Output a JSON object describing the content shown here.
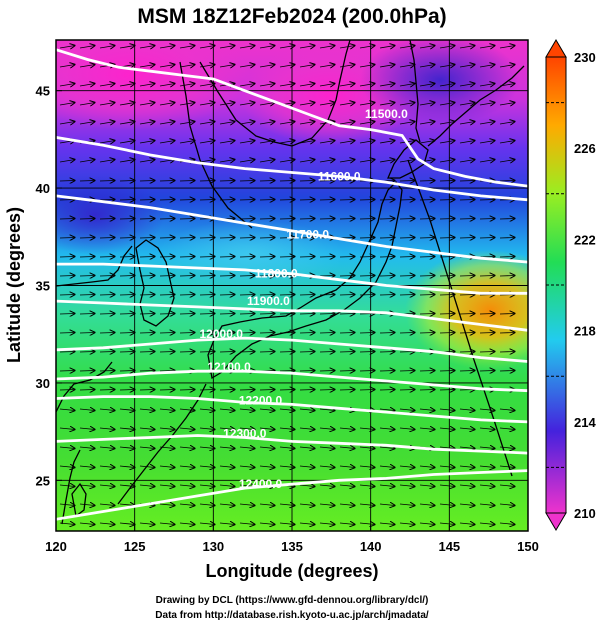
{
  "title": "MSM 18Z12Feb2024 (200.0hPa)",
  "x_axis": {
    "label": "Longitude (degrees)",
    "ticks": [
      "120",
      "125",
      "130",
      "135",
      "140",
      "145",
      "150"
    ]
  },
  "y_axis": {
    "label": "Latitude (degrees)",
    "ticks": [
      "25",
      "30",
      "35",
      "40",
      "45"
    ]
  },
  "colorbar": {
    "ticks": [
      "210",
      "214",
      "218",
      "222",
      "226",
      "230"
    ],
    "colors": [
      "#ee33cc",
      "#4422dd",
      "#22ccee",
      "#22dd55",
      "#99ee22",
      "#ff8800",
      "#ff4400"
    ]
  },
  "contour_labels": [
    "11500.0",
    "11600.0",
    "11700.0",
    "11800.0",
    "11900.0",
    "12000.0",
    "12100.0",
    "12200.0",
    "12300.0",
    "12400.0"
  ],
  "credits": {
    "line1": "Drawing by DCL (https://www.gfd-dennou.org/library/dcl/)",
    "line2": "Data from http://database.rish.kyoto-u.ac.jp/arch/jmadata/"
  },
  "chart_data": {
    "type": "heatmap",
    "title": "MSM 18Z12Feb2024 (200.0hPa)",
    "xlabel": "Longitude (degrees)",
    "ylabel": "Latitude (degrees)",
    "xlim": [
      120,
      150
    ],
    "ylim": [
      22.4,
      47.6
    ],
    "x_ticks": [
      120,
      125,
      130,
      135,
      140,
      145,
      150
    ],
    "y_ticks": [
      25,
      30,
      35,
      40,
      45
    ],
    "color_range": [
      210,
      230
    ],
    "colorbar_ticks": [
      210,
      214,
      218,
      222,
      226,
      230
    ],
    "contours": [
      {
        "level": 11500,
        "points": [
          [
            120,
            47.1
          ],
          [
            122,
            46.6
          ],
          [
            124,
            46.2
          ],
          [
            126,
            46.0
          ],
          [
            128,
            45.8
          ],
          [
            130,
            45.6
          ],
          [
            132,
            45.0
          ],
          [
            134,
            44.4
          ],
          [
            136,
            43.8
          ],
          [
            138,
            43.2
          ],
          [
            140,
            43.0
          ],
          [
            142,
            42.7
          ],
          [
            143,
            41.5
          ],
          [
            144,
            41.0
          ],
          [
            146,
            40.6
          ],
          [
            148,
            40.3
          ],
          [
            150,
            40.1
          ]
        ]
      },
      {
        "level": 11600,
        "points": [
          [
            120,
            42.6
          ],
          [
            123,
            42.2
          ],
          [
            126,
            41.7
          ],
          [
            129,
            41.3
          ],
          [
            132,
            41.0
          ],
          [
            135,
            40.8
          ],
          [
            138,
            40.6
          ],
          [
            141,
            40.3
          ],
          [
            144,
            39.9
          ],
          [
            147,
            39.6
          ],
          [
            150,
            39.4
          ]
        ]
      },
      {
        "level": 11700,
        "points": [
          [
            120,
            39.6
          ],
          [
            123,
            39.3
          ],
          [
            126,
            39.0
          ],
          [
            129,
            38.6
          ],
          [
            132,
            38.2
          ],
          [
            135,
            37.8
          ],
          [
            138,
            37.4
          ],
          [
            141,
            37.0
          ],
          [
            144,
            36.7
          ],
          [
            147,
            36.4
          ],
          [
            150,
            36.2
          ]
        ]
      },
      {
        "level": 11800,
        "points": [
          [
            120,
            36.1
          ],
          [
            123,
            36.1
          ],
          [
            126,
            36.0
          ],
          [
            129,
            35.9
          ],
          [
            132,
            35.8
          ],
          [
            135,
            35.6
          ],
          [
            138,
            35.3
          ],
          [
            141,
            35.0
          ],
          [
            144,
            34.8
          ],
          [
            147,
            34.6
          ],
          [
            150,
            34.6
          ]
        ]
      },
      {
        "level": 11900,
        "points": [
          [
            120,
            34.2
          ],
          [
            123,
            34.1
          ],
          [
            126,
            34.0
          ],
          [
            129,
            33.9
          ],
          [
            132,
            33.8
          ],
          [
            135,
            33.7
          ],
          [
            138,
            33.7
          ],
          [
            141,
            33.6
          ],
          [
            144,
            33.3
          ],
          [
            147,
            33.0
          ],
          [
            150,
            32.7
          ]
        ]
      },
      {
        "level": 12000,
        "points": [
          [
            120,
            31.7
          ],
          [
            123,
            31.8
          ],
          [
            126,
            32.0
          ],
          [
            129,
            32.2
          ],
          [
            132,
            32.3
          ],
          [
            135,
            32.2
          ],
          [
            138,
            32.0
          ],
          [
            141,
            31.8
          ],
          [
            144,
            31.6
          ],
          [
            147,
            31.3
          ],
          [
            150,
            31.1
          ]
        ]
      },
      {
        "level": 12100,
        "points": [
          [
            120,
            30.2
          ],
          [
            123,
            30.3
          ],
          [
            126,
            30.5
          ],
          [
            129,
            30.6
          ],
          [
            132,
            30.6
          ],
          [
            135,
            30.5
          ],
          [
            138,
            30.3
          ],
          [
            141,
            30.1
          ],
          [
            144,
            29.9
          ],
          [
            147,
            29.7
          ],
          [
            150,
            29.6
          ]
        ]
      },
      {
        "level": 12200,
        "points": [
          [
            120,
            29.2
          ],
          [
            123,
            29.3
          ],
          [
            126,
            29.3
          ],
          [
            129,
            29.2
          ],
          [
            132,
            29.0
          ],
          [
            135,
            28.9
          ],
          [
            138,
            28.7
          ],
          [
            141,
            28.5
          ],
          [
            144,
            28.3
          ],
          [
            147,
            28.1
          ],
          [
            150,
            28.0
          ]
        ]
      },
      {
        "level": 12300,
        "points": [
          [
            120,
            27.0
          ],
          [
            123,
            27.1
          ],
          [
            126,
            27.2
          ],
          [
            129,
            27.3
          ],
          [
            132,
            27.2
          ],
          [
            135,
            27.0
          ],
          [
            138,
            26.9
          ],
          [
            141,
            26.8
          ],
          [
            144,
            26.6
          ],
          [
            147,
            26.5
          ],
          [
            150,
            26.4
          ]
        ]
      },
      {
        "level": 12400,
        "points": [
          [
            120,
            23.0
          ],
          [
            123,
            23.4
          ],
          [
            126,
            23.8
          ],
          [
            129,
            24.2
          ],
          [
            132,
            24.6
          ],
          [
            135,
            24.8
          ],
          [
            138,
            25.0
          ],
          [
            141,
            25.1
          ],
          [
            144,
            25.3
          ],
          [
            147,
            25.4
          ],
          [
            150,
            25.5
          ]
        ]
      }
    ]
  }
}
